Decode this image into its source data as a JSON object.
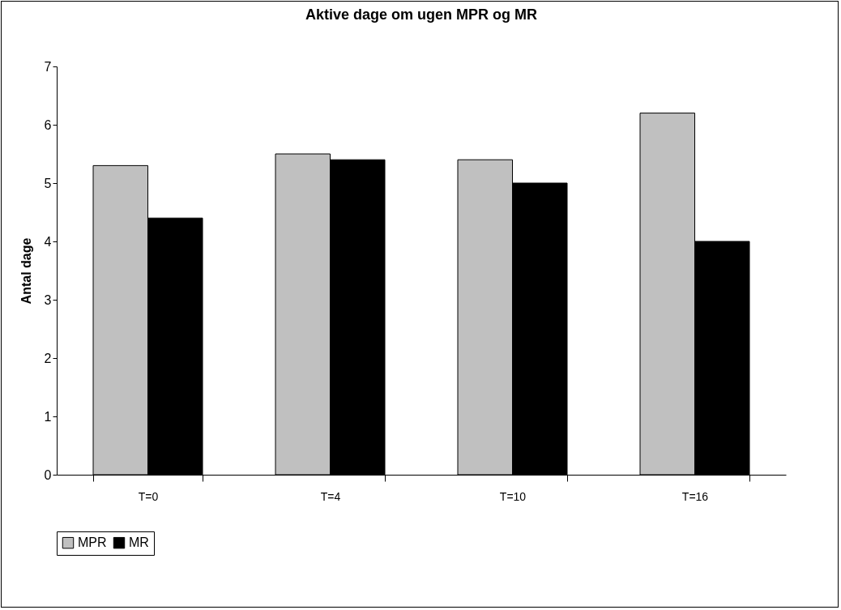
{
  "chart_data": {
    "type": "bar",
    "title": "Aktive dage om ugen MPR og MR",
    "ylabel": "Antal dage",
    "categories": [
      "T=0",
      "T=4",
      "T=10",
      "T=16"
    ],
    "series": [
      {
        "name": "MPR",
        "color": "#c0c0c0",
        "values": [
          5.3,
          5.5,
          5.4,
          6.2
        ]
      },
      {
        "name": "MR",
        "color": "#000000",
        "values": [
          4.4,
          5.4,
          5.0,
          4.0
        ]
      }
    ],
    "ylim": [
      0,
      7
    ],
    "yticks": [
      0,
      1,
      2,
      3,
      4,
      5,
      6,
      7
    ],
    "grid": false,
    "legend": "bottom"
  }
}
